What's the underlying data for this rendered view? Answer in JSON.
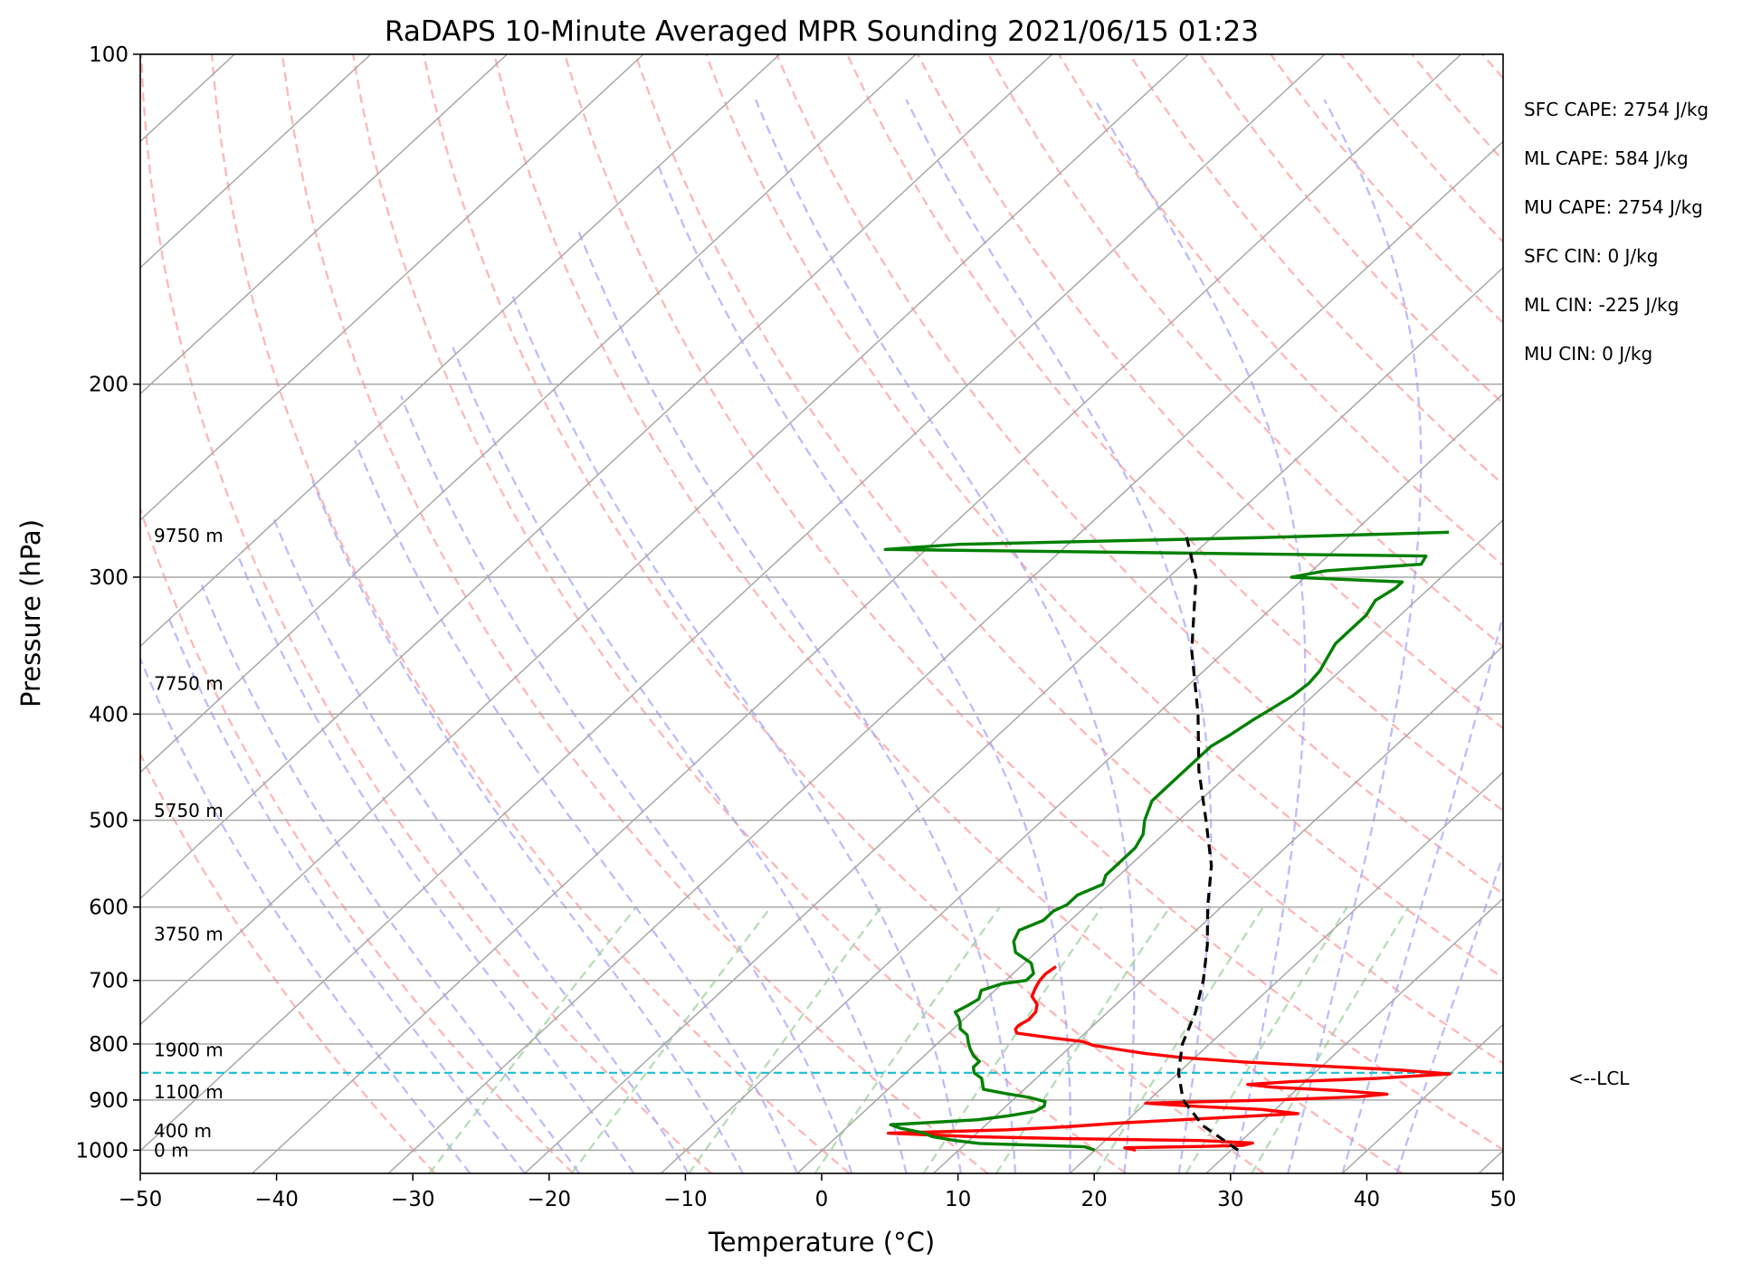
{
  "chart_data": {
    "type": "line",
    "subtype": "skew-T log-P sounding",
    "title": "RaDAPS 10-Minute Averaged MPR Sounding 2021/06/15 01:23",
    "xlabel": "Temperature (°C)",
    "ylabel": "Pressure (hPa)",
    "xlim": [
      -50,
      50
    ],
    "ylim": [
      1050,
      100
    ],
    "y_scale": "log",
    "x_ticks": [
      "−50",
      "−40",
      "−30",
      "−20",
      "−10",
      "0",
      "10",
      "20",
      "30",
      "40",
      "50"
    ],
    "y_ticks": [
      "100",
      "200",
      "300",
      "400",
      "500",
      "600",
      "700",
      "800",
      "900",
      "1000"
    ],
    "isobar_gridlines": [
      100,
      200,
      300,
      400,
      500,
      600,
      700,
      800,
      900,
      1000
    ],
    "isotherm_gridlines": "every 10 °C, skewed",
    "height_labels": [
      {
        "text": "9750 m",
        "p": 275
      },
      {
        "text": "7750 m",
        "p": 375
      },
      {
        "text": "5750 m",
        "p": 490
      },
      {
        "text": "3750 m",
        "p": 635
      },
      {
        "text": "1900 m",
        "p": 810
      },
      {
        "text": "1100 m",
        "p": 885
      },
      {
        "text": "400 m",
        "p": 960
      },
      {
        "text": "0 m",
        "p": 1000
      }
    ],
    "stats": [
      "SFC CAPE: 2754 J/kg",
      "ML CAPE: 584 J/kg",
      "MU CAPE: 2754 J/kg",
      "SFC CIN: 0 J/kg",
      "ML CIN: -225 J/kg",
      "MU CIN: 0 J/kg"
    ],
    "lcl": {
      "label": "<--LCL",
      "p": 850
    },
    "colors": {
      "temperature": "#ff0000",
      "dewpoint": "#008000",
      "parcel": "#000000",
      "lcl": "#17becf",
      "dry_adiabat": "#ff9e9e",
      "moist_adiabat": "#a6a6ff",
      "mixing_ratio": "#9ed19e",
      "grid": "#a8a8a8"
    },
    "series": [
      {
        "key": "temperature",
        "points": [
          [
            1000,
            23
          ],
          [
            995,
            22
          ],
          [
            992,
            28
          ],
          [
            990,
            30.5
          ],
          [
            985,
            31
          ],
          [
            980,
            27
          ],
          [
            976,
            17
          ],
          [
            972,
            10
          ],
          [
            965,
            3.5
          ],
          [
            958,
            12
          ],
          [
            952,
            16
          ],
          [
            944,
            20
          ],
          [
            938,
            24
          ],
          [
            932,
            28
          ],
          [
            926,
            32
          ],
          [
            918,
            29
          ],
          [
            912,
            24
          ],
          [
            906,
            20
          ],
          [
            900,
            29
          ],
          [
            894,
            35
          ],
          [
            889,
            37
          ],
          [
            882,
            33
          ],
          [
            876,
            28
          ],
          [
            871,
            26
          ],
          [
            866,
            29
          ],
          [
            860,
            35
          ],
          [
            852,
            40
          ],
          [
            845,
            36
          ],
          [
            838,
            30
          ],
          [
            831,
            24
          ],
          [
            823,
            19
          ],
          [
            816,
            16
          ],
          [
            810,
            14
          ],
          [
            802,
            11.5
          ],
          [
            796,
            10.5
          ],
          [
            790,
            8
          ],
          [
            782,
            5
          ],
          [
            776,
            4.6
          ],
          [
            770,
            4.5
          ],
          [
            760,
            4.8
          ],
          [
            748,
            4.7
          ],
          [
            736,
            4.2
          ],
          [
            724,
            3.2
          ],
          [
            712,
            2.8
          ],
          [
            700,
            2.5
          ],
          [
            690,
            2.4
          ],
          [
            680,
            2.6
          ]
        ]
      },
      {
        "key": "dewpoint",
        "points": [
          [
            1000,
            20
          ],
          [
            993,
            19
          ],
          [
            986,
            11
          ],
          [
            980,
            9
          ],
          [
            972,
            7
          ],
          [
            964,
            6
          ],
          [
            955,
            4
          ],
          [
            948,
            3
          ],
          [
            943,
            6
          ],
          [
            938,
            9
          ],
          [
            930,
            11
          ],
          [
            922,
            12.5
          ],
          [
            912,
            12.8
          ],
          [
            903,
            12.5
          ],
          [
            895,
            11
          ],
          [
            888,
            9
          ],
          [
            880,
            7
          ],
          [
            870,
            6.5
          ],
          [
            860,
            6
          ],
          [
            850,
            5
          ],
          [
            840,
            4.5
          ],
          [
            830,
            4.5
          ],
          [
            820,
            3.6
          ],
          [
            808,
            2.8
          ],
          [
            798,
            2.2
          ],
          [
            785,
            1.5
          ],
          [
            775,
            0.5
          ],
          [
            765,
            0
          ],
          [
            757,
            -0.5
          ],
          [
            748,
            -1.2
          ],
          [
            738,
            -0.8
          ],
          [
            728,
            -0.5
          ],
          [
            715,
            -1
          ],
          [
            705,
            0
          ],
          [
            700,
            1.5
          ],
          [
            690,
            1.5
          ],
          [
            675,
            0.5
          ],
          [
            660,
            -1.5
          ],
          [
            645,
            -2.5
          ],
          [
            630,
            -3
          ],
          [
            617,
            -2
          ],
          [
            605,
            -2
          ],
          [
            597,
            -1.5
          ],
          [
            585,
            -1.5
          ],
          [
            572,
            -0.5
          ],
          [
            561,
            -1
          ],
          [
            546,
            -1
          ],
          [
            530,
            -1
          ],
          [
            515,
            -1.5
          ],
          [
            500,
            -2.5
          ],
          [
            480,
            -3.5
          ],
          [
            460,
            -3.5
          ],
          [
            440,
            -3.5
          ],
          [
            428,
            -3.5
          ],
          [
            418,
            -3
          ],
          [
            405,
            -2.5
          ],
          [
            395,
            -2
          ],
          [
            385,
            -1.5
          ],
          [
            375,
            -1.3
          ],
          [
            365,
            -1.5
          ],
          [
            355,
            -2
          ],
          [
            345,
            -2.5
          ],
          [
            335,
            -2.5
          ],
          [
            325,
            -2.5
          ],
          [
            315,
            -3
          ],
          [
            307,
            -2.5
          ],
          [
            303,
            -2.5
          ],
          [
            300,
            -11
          ],
          [
            296,
            -9
          ],
          [
            292,
            -2.5
          ],
          [
            287,
            -2.8
          ],
          [
            283,
            -43
          ],
          [
            280,
            -38
          ],
          [
            276,
            -16
          ],
          [
            273,
            -3
          ]
        ]
      },
      {
        "key": "parcel",
        "points": [
          [
            1000,
            30.5
          ],
          [
            950,
            26
          ],
          [
            900,
            22.5
          ],
          [
            850,
            20
          ],
          [
            800,
            18
          ],
          [
            750,
            16.5
          ],
          [
            700,
            14.5
          ],
          [
            650,
            12
          ],
          [
            600,
            9
          ],
          [
            550,
            6
          ],
          [
            500,
            2
          ],
          [
            450,
            -2.5
          ],
          [
            400,
            -7
          ],
          [
            350,
            -12.5
          ],
          [
            300,
            -18
          ],
          [
            275,
            -22
          ]
        ]
      }
    ]
  }
}
